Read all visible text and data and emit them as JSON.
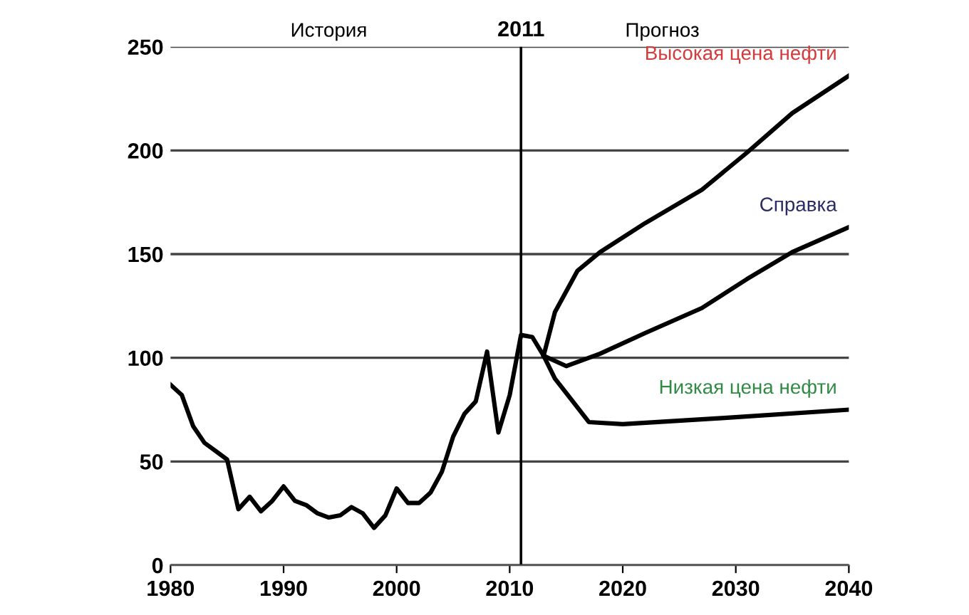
{
  "chart_data": {
    "type": "line",
    "xlim": [
      1980,
      2040
    ],
    "xticks": [
      1980,
      1990,
      2000,
      2010,
      2020,
      2030,
      2040
    ],
    "ylim": [
      0,
      250
    ],
    "yticks": [
      0,
      50,
      100,
      150,
      200,
      250
    ],
    "grid": "y",
    "legend": false,
    "marker": "none",
    "line_style": "solid",
    "series": [
      {
        "name": "Высокая цена нефти",
        "color": "#000000",
        "x": [
          2013,
          2014,
          2016,
          2018,
          2022,
          2027,
          2031,
          2035,
          2040
        ],
        "values": [
          101,
          122,
          142,
          151,
          165,
          181,
          199,
          218,
          236
        ]
      },
      {
        "name": "Справка",
        "color": "#000000",
        "x": [
          1980,
          1981,
          1982,
          1983,
          1984,
          1985,
          1986,
          1987,
          1988,
          1989,
          1990,
          1991,
          1992,
          1993,
          1994,
          1995,
          1996,
          1997,
          1998,
          1999,
          2000,
          2001,
          2002,
          2003,
          2004,
          2005,
          2006,
          2007,
          2008,
          2009,
          2010,
          2011,
          2012,
          2013,
          2015,
          2018,
          2022,
          2027,
          2031,
          2035,
          2040
        ],
        "values": [
          87,
          82,
          67,
          59,
          55,
          51,
          27,
          33,
          26,
          31,
          38,
          31,
          29,
          25,
          23,
          24,
          28,
          25,
          18,
          24,
          37,
          30,
          30,
          35,
          45,
          62,
          73,
          79,
          103,
          64,
          82,
          111,
          110,
          101,
          96,
          102,
          112,
          124,
          138,
          151,
          163
        ]
      },
      {
        "name": "Низкая цена нефти",
        "color": "#000000",
        "x": [
          2013,
          2014,
          2015,
          2017,
          2020,
          2029,
          2040
        ],
        "values": [
          101,
          90,
          83,
          69,
          68,
          71,
          75
        ]
      }
    ],
    "ref_lines": [
      {
        "axis": "x",
        "value": 2011,
        "label": "2011",
        "color": "#000000"
      }
    ],
    "annotations": [
      "История",
      "Прогноз"
    ]
  }
}
